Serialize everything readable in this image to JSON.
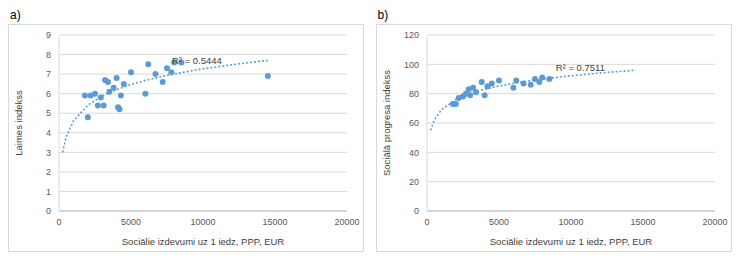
{
  "chart_data": [
    {
      "type": "scatter",
      "title": "a)",
      "x_label": "Sociālie izdevumi uz 1 iedz, PPP, EUR",
      "y_label": "Laimes indekss",
      "annotation": "R² = 0.5444",
      "x": [
        1800,
        2000,
        2200,
        2500,
        2700,
        2900,
        3100,
        3200,
        3400,
        3500,
        3800,
        4000,
        4100,
        4200,
        4300,
        4500,
        5000,
        6000,
        6200,
        6700,
        7200,
        7500,
        7800,
        8000,
        8500,
        14500
      ],
      "values": [
        5.9,
        4.8,
        5.9,
        6.0,
        5.4,
        5.8,
        5.4,
        6.7,
        6.6,
        6.1,
        6.3,
        6.8,
        5.3,
        5.2,
        5.9,
        6.5,
        7.1,
        6.0,
        7.5,
        7.0,
        6.6,
        7.3,
        7.1,
        7.6,
        7.6,
        6.9
      ],
      "color": "#5b9bd5",
      "marker": "circle",
      "trendline": {
        "x": [
          250,
          500,
          1000,
          2000,
          3000,
          4000,
          5000,
          6000,
          8000,
          10000,
          12000,
          14500
        ],
        "values": [
          3.0,
          3.8,
          4.6,
          5.41,
          5.88,
          6.21,
          6.47,
          6.68,
          7.01,
          7.27,
          7.48,
          7.7
        ],
        "color": "#5b9bd5",
        "line_style": "dotted"
      },
      "xlim": [
        0,
        20000
      ],
      "xticks": [
        0,
        5000,
        10000,
        15000,
        20000
      ],
      "ylim": [
        0,
        9
      ],
      "yticks": [
        0,
        1,
        2,
        3,
        4,
        5,
        6,
        7,
        8,
        9
      ],
      "grid": true
    },
    {
      "type": "scatter",
      "title": "b)",
      "x_label": "Sociālie izdevumi uz 1 iedz, PPP, EUR",
      "y_label": "Sociālā progresa indekss",
      "annotation": "R² = 0.7511",
      "x": [
        1800,
        2000,
        2200,
        2500,
        2700,
        2900,
        3000,
        3200,
        3400,
        3800,
        4000,
        4200,
        4500,
        5000,
        6000,
        6200,
        6700,
        7200,
        7500,
        7800,
        8000,
        8500
      ],
      "values": [
        73,
        73,
        77,
        78,
        80,
        83,
        79,
        84,
        81,
        88,
        79,
        85,
        87,
        89,
        84,
        89,
        87,
        86,
        90,
        88,
        91,
        90
      ],
      "color": "#5b9bd5",
      "marker": "circle",
      "trendline": {
        "x": [
          250,
          500,
          1000,
          2000,
          3000,
          4000,
          5000,
          6000,
          8000,
          10000,
          12000,
          14500
        ],
        "values": [
          55,
          62,
          69,
          76,
          80.1,
          83,
          85.2,
          87.1,
          90,
          92.2,
          94.1,
          96
        ],
        "color": "#5b9bd5",
        "line_style": "dotted"
      },
      "xlim": [
        0,
        20000
      ],
      "xticks": [
        0,
        5000,
        10000,
        15000,
        20000
      ],
      "ylim": [
        0,
        120
      ],
      "yticks": [
        0,
        20,
        40,
        60,
        80,
        100,
        120
      ],
      "grid": true
    }
  ]
}
